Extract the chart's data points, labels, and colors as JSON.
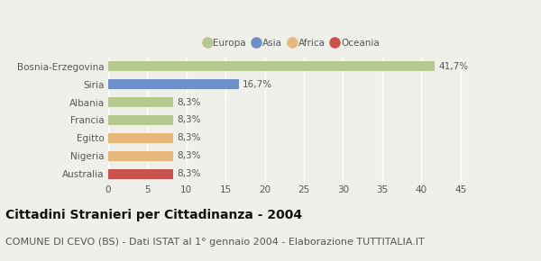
{
  "categories": [
    "Bosnia-Erzegovina",
    "Siria",
    "Albania",
    "Francia",
    "Egitto",
    "Nigeria",
    "Australia"
  ],
  "values": [
    41.7,
    16.7,
    8.3,
    8.3,
    8.3,
    8.3,
    8.3
  ],
  "labels": [
    "41,7%",
    "16,7%",
    "8,3%",
    "8,3%",
    "8,3%",
    "8,3%",
    "8,3%"
  ],
  "colors": [
    "#b5c98e",
    "#6e8fc9",
    "#b5c98e",
    "#b5c98e",
    "#e8b87a",
    "#e8b87a",
    "#c9514e"
  ],
  "legend": [
    {
      "label": "Europa",
      "color": "#b5c98e"
    },
    {
      "label": "Asia",
      "color": "#6e8fc9"
    },
    {
      "label": "Africa",
      "color": "#e8b87a"
    },
    {
      "label": "Oceania",
      "color": "#c9514e"
    }
  ],
  "xlim": [
    0,
    47
  ],
  "xticks": [
    0,
    5,
    10,
    15,
    20,
    25,
    30,
    35,
    40,
    45
  ],
  "title": "Cittadini Stranieri per Cittadinanza - 2004",
  "subtitle": "COMUNE DI CEVO (BS) - Dati ISTAT al 1° gennaio 2004 - Elaborazione TUTTITALIA.IT",
  "background_color": "#f0f0eb",
  "bar_height": 0.55,
  "title_fontsize": 10,
  "subtitle_fontsize": 8,
  "label_fontsize": 7.5,
  "tick_fontsize": 7.5,
  "ytick_fontsize": 7.5
}
